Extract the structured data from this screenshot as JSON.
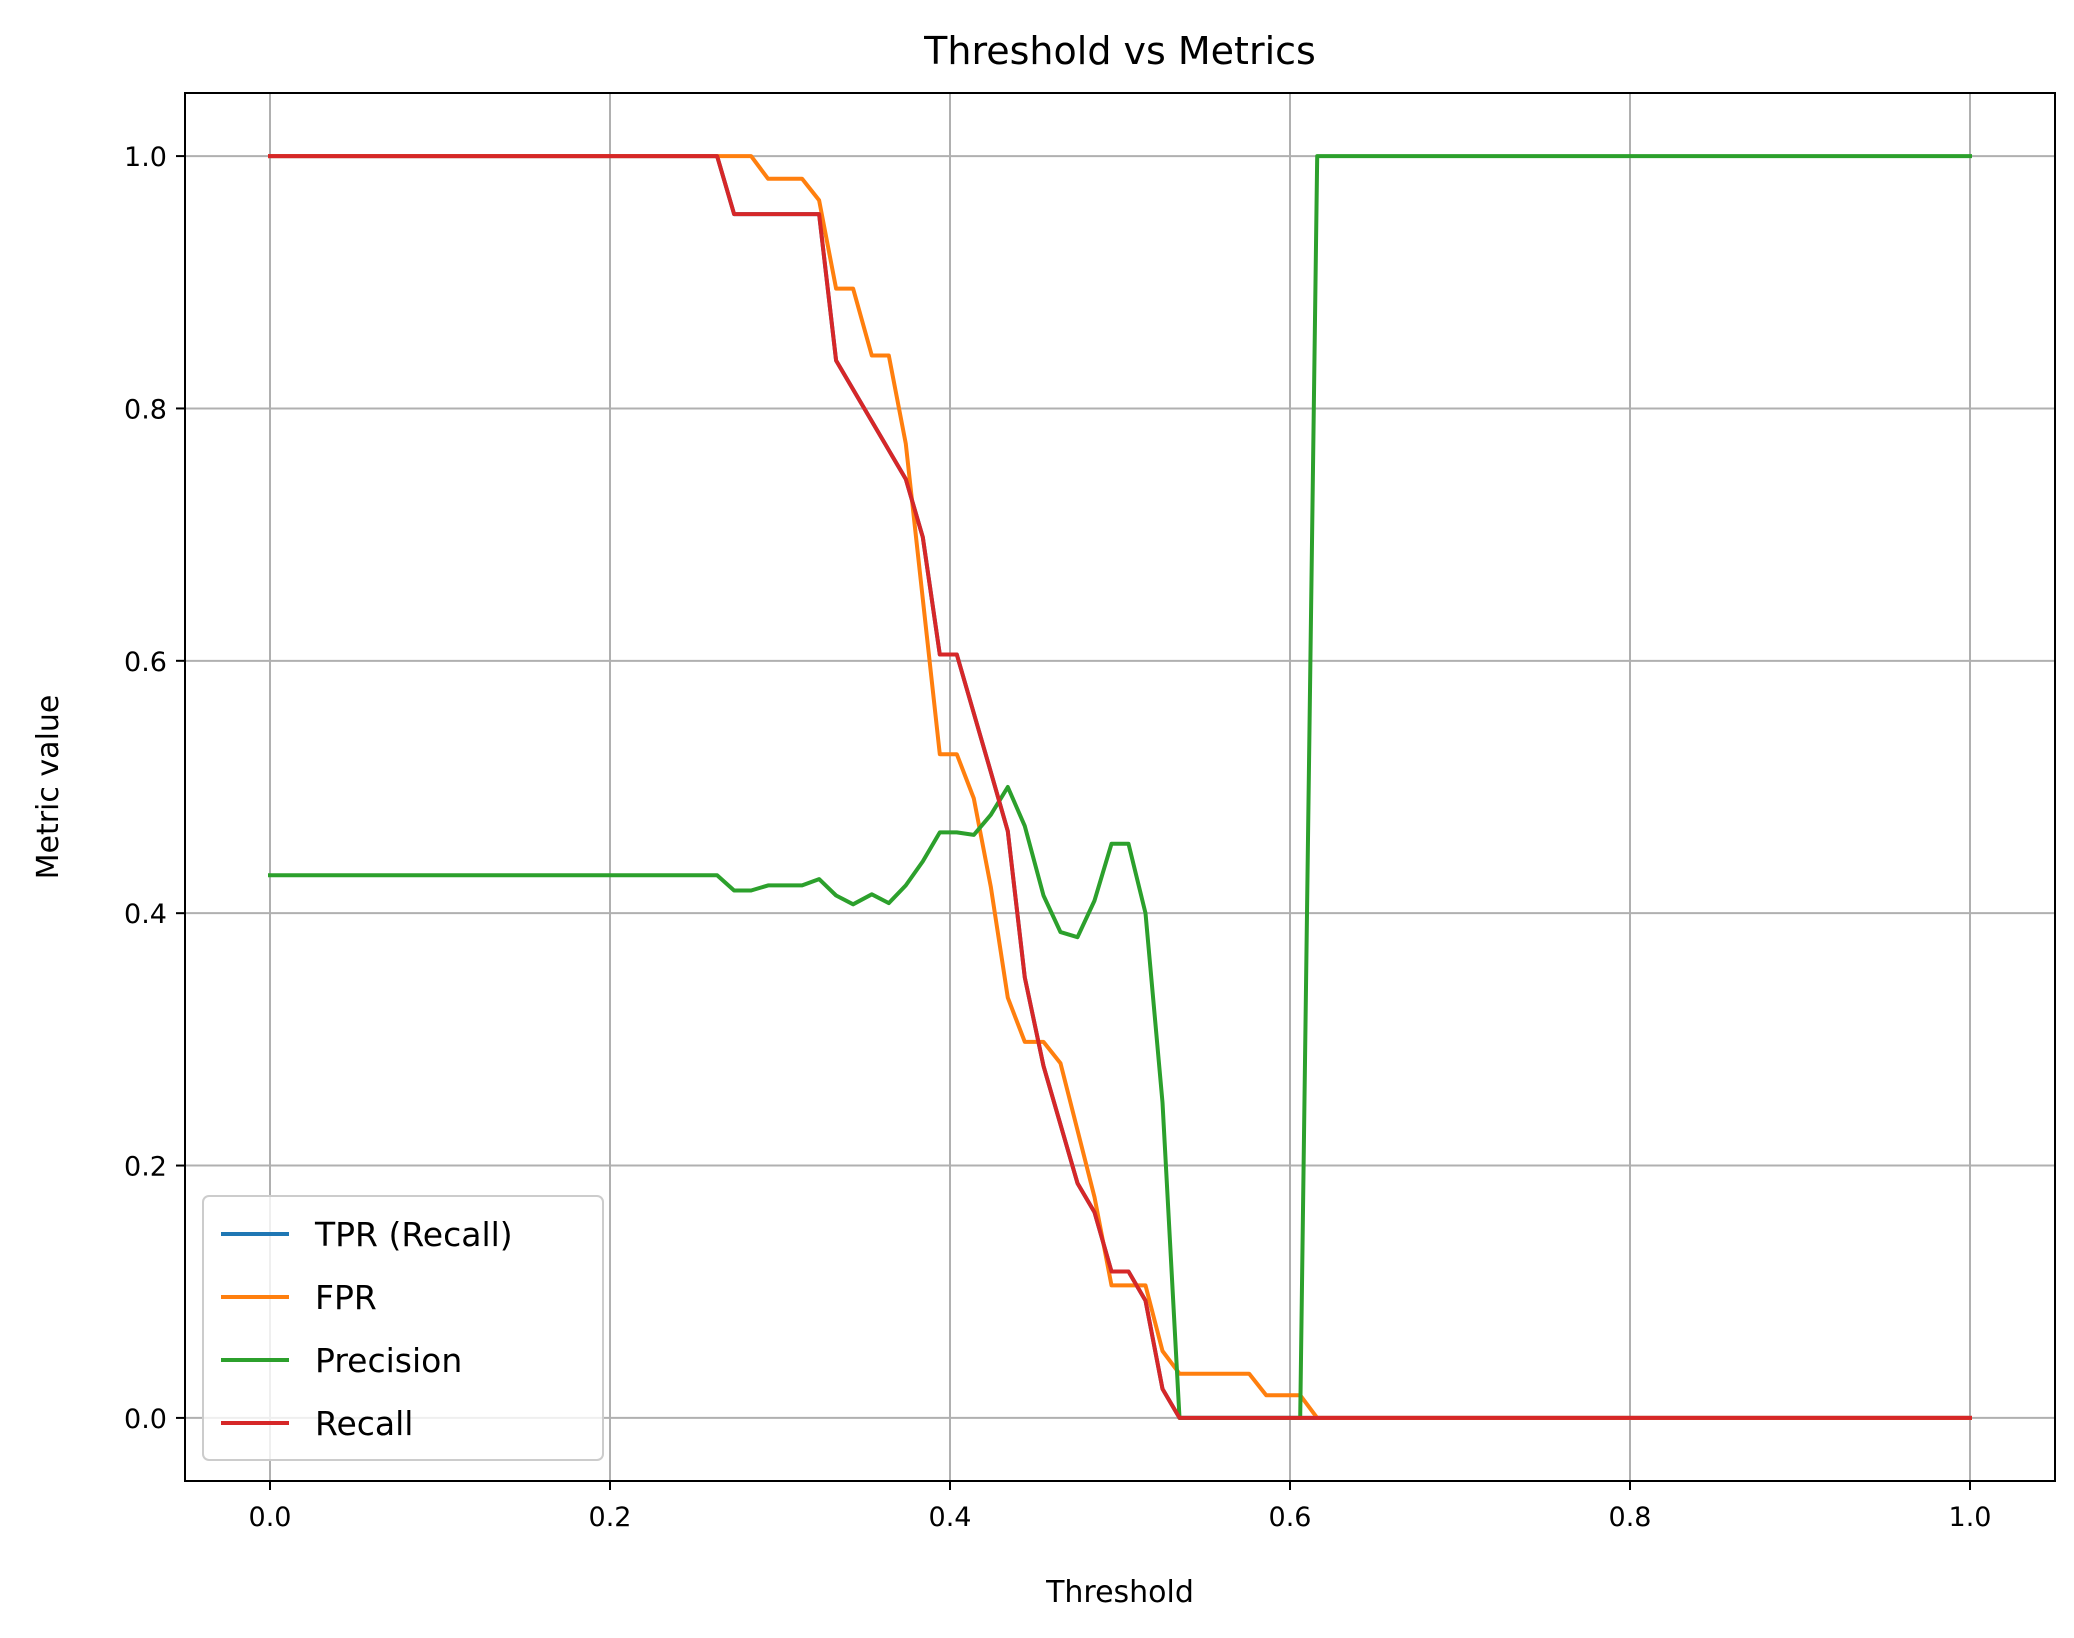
{
  "chart_data": {
    "type": "line",
    "title": "Threshold vs Metrics",
    "xlabel": "Threshold",
    "ylabel": "Metric value",
    "xlim": [
      -0.05,
      1.05
    ],
    "ylim": [
      -0.05,
      1.05
    ],
    "xticks": [
      0.0,
      0.2,
      0.4,
      0.6,
      0.8,
      1.0
    ],
    "xtick_labels": [
      "0.0",
      "0.2",
      "0.4",
      "0.6",
      "0.8",
      "1.0"
    ],
    "yticks": [
      0.0,
      0.2,
      0.4,
      0.6,
      0.8,
      1.0
    ],
    "ytick_labels": [
      "0.0",
      "0.2",
      "0.4",
      "0.6",
      "0.8",
      "1.0"
    ],
    "grid": true,
    "legend": "lower-left",
    "series": [
      {
        "name": "TPR (Recall)",
        "color": "#1f77b4",
        "points": [
          [
            0.0,
            1.0
          ],
          [
            0.263,
            1.0
          ],
          [
            0.273,
            0.954
          ],
          [
            0.323,
            0.954
          ],
          [
            0.333,
            0.838
          ],
          [
            0.374,
            0.744
          ],
          [
            0.384,
            0.698
          ],
          [
            0.394,
            0.605
          ],
          [
            0.404,
            0.605
          ],
          [
            0.424,
            0.512
          ],
          [
            0.434,
            0.465
          ],
          [
            0.444,
            0.349
          ],
          [
            0.455,
            0.279
          ],
          [
            0.475,
            0.186
          ],
          [
            0.485,
            0.163
          ],
          [
            0.495,
            0.116
          ],
          [
            0.505,
            0.116
          ],
          [
            0.515,
            0.093
          ],
          [
            0.525,
            0.023
          ],
          [
            0.535,
            0.0
          ],
          [
            1.0,
            0.0
          ]
        ]
      },
      {
        "name": "FPR",
        "color": "#ff7f0e",
        "points": [
          [
            0.0,
            1.0
          ],
          [
            0.283,
            1.0
          ],
          [
            0.293,
            0.982
          ],
          [
            0.313,
            0.982
          ],
          [
            0.323,
            0.965
          ],
          [
            0.333,
            0.895
          ],
          [
            0.343,
            0.895
          ],
          [
            0.354,
            0.842
          ],
          [
            0.364,
            0.842
          ],
          [
            0.374,
            0.772
          ],
          [
            0.384,
            0.649
          ],
          [
            0.394,
            0.526
          ],
          [
            0.404,
            0.526
          ],
          [
            0.414,
            0.491
          ],
          [
            0.424,
            0.421
          ],
          [
            0.434,
            0.333
          ],
          [
            0.444,
            0.298
          ],
          [
            0.455,
            0.298
          ],
          [
            0.465,
            0.281
          ],
          [
            0.485,
            0.175
          ],
          [
            0.495,
            0.105
          ],
          [
            0.505,
            0.105
          ],
          [
            0.515,
            0.105
          ],
          [
            0.525,
            0.053
          ],
          [
            0.535,
            0.035
          ],
          [
            0.576,
            0.035
          ],
          [
            0.586,
            0.018
          ],
          [
            0.606,
            0.018
          ],
          [
            0.616,
            0.0
          ],
          [
            1.0,
            0.0
          ]
        ]
      },
      {
        "name": "Precision",
        "color": "#2ca02c",
        "points": [
          [
            0.0,
            0.43
          ],
          [
            0.263,
            0.43
          ],
          [
            0.273,
            0.418
          ],
          [
            0.283,
            0.418
          ],
          [
            0.293,
            0.422
          ],
          [
            0.313,
            0.422
          ],
          [
            0.323,
            0.427
          ],
          [
            0.333,
            0.414
          ],
          [
            0.343,
            0.407
          ],
          [
            0.354,
            0.415
          ],
          [
            0.364,
            0.408
          ],
          [
            0.374,
            0.422
          ],
          [
            0.384,
            0.441
          ],
          [
            0.394,
            0.464
          ],
          [
            0.404,
            0.464
          ],
          [
            0.414,
            0.462
          ],
          [
            0.424,
            0.478
          ],
          [
            0.434,
            0.5
          ],
          [
            0.444,
            0.469
          ],
          [
            0.455,
            0.414
          ],
          [
            0.465,
            0.385
          ],
          [
            0.475,
            0.381
          ],
          [
            0.485,
            0.41
          ],
          [
            0.495,
            0.455
          ],
          [
            0.505,
            0.455
          ],
          [
            0.515,
            0.4
          ],
          [
            0.525,
            0.25
          ],
          [
            0.535,
            0.0
          ],
          [
            0.606,
            0.0
          ],
          [
            0.616,
            1.0
          ],
          [
            1.0,
            1.0
          ]
        ]
      },
      {
        "name": "Recall",
        "color": "#d62728",
        "points": [
          [
            0.0,
            1.0
          ],
          [
            0.263,
            1.0
          ],
          [
            0.273,
            0.954
          ],
          [
            0.323,
            0.954
          ],
          [
            0.333,
            0.838
          ],
          [
            0.374,
            0.744
          ],
          [
            0.384,
            0.698
          ],
          [
            0.394,
            0.605
          ],
          [
            0.404,
            0.605
          ],
          [
            0.424,
            0.512
          ],
          [
            0.434,
            0.465
          ],
          [
            0.444,
            0.349
          ],
          [
            0.455,
            0.279
          ],
          [
            0.475,
            0.186
          ],
          [
            0.485,
            0.163
          ],
          [
            0.495,
            0.116
          ],
          [
            0.505,
            0.116
          ],
          [
            0.515,
            0.093
          ],
          [
            0.525,
            0.023
          ],
          [
            0.535,
            0.0
          ],
          [
            1.0,
            0.0
          ]
        ]
      }
    ]
  }
}
